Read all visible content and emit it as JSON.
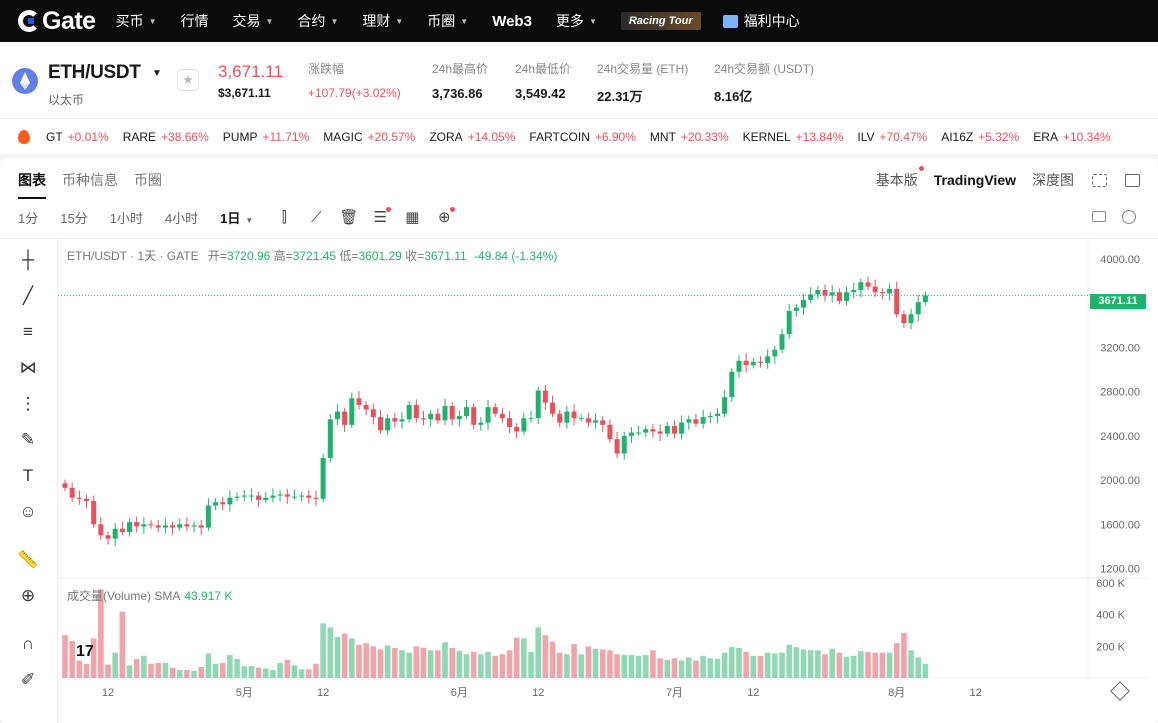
{
  "nav": {
    "logo": "Gate",
    "items": [
      {
        "label": "买币",
        "caret": true
      },
      {
        "label": "行情",
        "caret": false
      },
      {
        "label": "交易",
        "caret": true
      },
      {
        "label": "合约",
        "caret": true
      },
      {
        "label": "理财",
        "caret": true
      },
      {
        "label": "币圈",
        "caret": true
      },
      {
        "label": "Web3",
        "caret": false,
        "bold": true
      },
      {
        "label": "更多",
        "caret": true
      }
    ],
    "racing": "Racing Tour",
    "gift": "福利中心"
  },
  "pair": {
    "name": "ETH/USDT",
    "sub": "以太币",
    "price": "3,671.11",
    "price_usd": "$3,671.11",
    "change_label": "涨跌幅",
    "change_value": "+107.79(+3.02%)",
    "stats": [
      {
        "label": "24h最高价",
        "value": "3,736.86"
      },
      {
        "label": "24h最低价",
        "value": "3,549.42"
      },
      {
        "label": "24h交易量 (ETH)",
        "value": "22.31万"
      },
      {
        "label": "24h交易额 (USDT)",
        "value": "8.16亿"
      }
    ]
  },
  "ticker": [
    {
      "sym": "GT",
      "pct": "+0.01%"
    },
    {
      "sym": "RARE",
      "pct": "+38.66%"
    },
    {
      "sym": "PUMP",
      "pct": "+11.71%"
    },
    {
      "sym": "MAGIC",
      "pct": "+20.57%"
    },
    {
      "sym": "ZORA",
      "pct": "+14.05%"
    },
    {
      "sym": "FARTCOIN",
      "pct": "+6.90%"
    },
    {
      "sym": "MNT",
      "pct": "+20.33%"
    },
    {
      "sym": "KERNEL",
      "pct": "+13.84%"
    },
    {
      "sym": "ILV",
      "pct": "+70.47%"
    },
    {
      "sym": "AI16Z",
      "pct": "+5.32%"
    },
    {
      "sym": "ERA",
      "pct": "+10.34%"
    }
  ],
  "tabs": [
    "图表",
    "币种信息",
    "币圈"
  ],
  "views": [
    "基本版",
    "TradingView",
    "深度图"
  ],
  "timeframes": [
    "1分",
    "15分",
    "1小时",
    "4小时",
    "1日"
  ],
  "legend": {
    "pair": "ETH/USDT · 1天 · GATE",
    "open_lbl": "开=",
    "open": "3720.96",
    "high_lbl": "高=",
    "high": "3721.45",
    "low_lbl": "低=",
    "low": "3601.29",
    "close_lbl": "收=",
    "close": "3671.11",
    "change": "-49.84 (-1.34%)"
  },
  "volume_legend": {
    "label": "成交量(Volume) SMA",
    "value": "43.917 K"
  },
  "current_price_tag": "3671.11",
  "chart_data": {
    "type": "candlestick",
    "y_ticks": [
      "4000.00",
      "3600.00",
      "3200.00",
      "2800.00",
      "2400.00",
      "2000.00",
      "1600.00",
      "1200.00"
    ],
    "ylim": [
      1150,
      4100
    ],
    "vol_ticks": [
      "600 K",
      "400 K",
      "200 K"
    ],
    "vol_max": 600,
    "x_labels": [
      {
        "text": "12",
        "i": 6
      },
      {
        "text": "5月",
        "i": 25
      },
      {
        "text": "12",
        "i": 36
      },
      {
        "text": "6月",
        "i": 55
      },
      {
        "text": "12",
        "i": 66
      },
      {
        "text": "7月",
        "i": 85
      },
      {
        "text": "12",
        "i": 96
      },
      {
        "text": "8月",
        "i": 116
      },
      {
        "text": "12",
        "i": 127
      }
    ],
    "closes": [
      1930,
      1840,
      1830,
      1810,
      1600,
      1500,
      1470,
      1560,
      1530,
      1620,
      1580,
      1600,
      1590,
      1570,
      1590,
      1570,
      1600,
      1580,
      1590,
      1570,
      1770,
      1800,
      1780,
      1840,
      1850,
      1860,
      1860,
      1820,
      1840,
      1860,
      1870,
      1850,
      1850,
      1860,
      1840,
      1830,
      2200,
      2550,
      2620,
      2500,
      2740,
      2680,
      2640,
      2570,
      2450,
      2560,
      2530,
      2550,
      2680,
      2560,
      2550,
      2600,
      2540,
      2670,
      2550,
      2580,
      2660,
      2500,
      2520,
      2660,
      2600,
      2560,
      2480,
      2440,
      2560,
      2560,
      2810,
      2700,
      2600,
      2520,
      2620,
      2560,
      2560,
      2520,
      2540,
      2500,
      2370,
      2240,
      2400,
      2430,
      2430,
      2460,
      2440,
      2420,
      2490,
      2420,
      2520,
      2550,
      2510,
      2570,
      2580,
      2600,
      2750,
      2980,
      3080,
      3040,
      3070,
      3060,
      3120,
      3180,
      3320,
      3530,
      3560,
      3630,
      3680,
      3720,
      3670,
      3700,
      3620,
      3700,
      3720,
      3790,
      3750,
      3700,
      3690,
      3730,
      3500,
      3420,
      3500,
      3610,
      3671
    ],
    "volumes": [
      270,
      235,
      110,
      90,
      250,
      560,
      85,
      160,
      420,
      80,
      120,
      140,
      90,
      95,
      95,
      65,
      50,
      50,
      45,
      70,
      155,
      90,
      95,
      145,
      120,
      75,
      75,
      65,
      60,
      50,
      95,
      115,
      80,
      55,
      55,
      90,
      345,
      320,
      260,
      280,
      250,
      210,
      220,
      200,
      180,
      205,
      190,
      175,
      160,
      200,
      190,
      175,
      175,
      225,
      190,
      170,
      150,
      165,
      150,
      165,
      140,
      150,
      175,
      255,
      250,
      165,
      320,
      270,
      230,
      160,
      150,
      215,
      150,
      200,
      185,
      180,
      175,
      150,
      145,
      145,
      140,
      145,
      175,
      125,
      115,
      125,
      110,
      130,
      110,
      140,
      125,
      120,
      160,
      195,
      190,
      165,
      140,
      140,
      160,
      155,
      160,
      210,
      195,
      180,
      175,
      175,
      150,
      185,
      160,
      135,
      140,
      170,
      165,
      160,
      160,
      160,
      220,
      285,
      175,
      130,
      90
    ]
  }
}
